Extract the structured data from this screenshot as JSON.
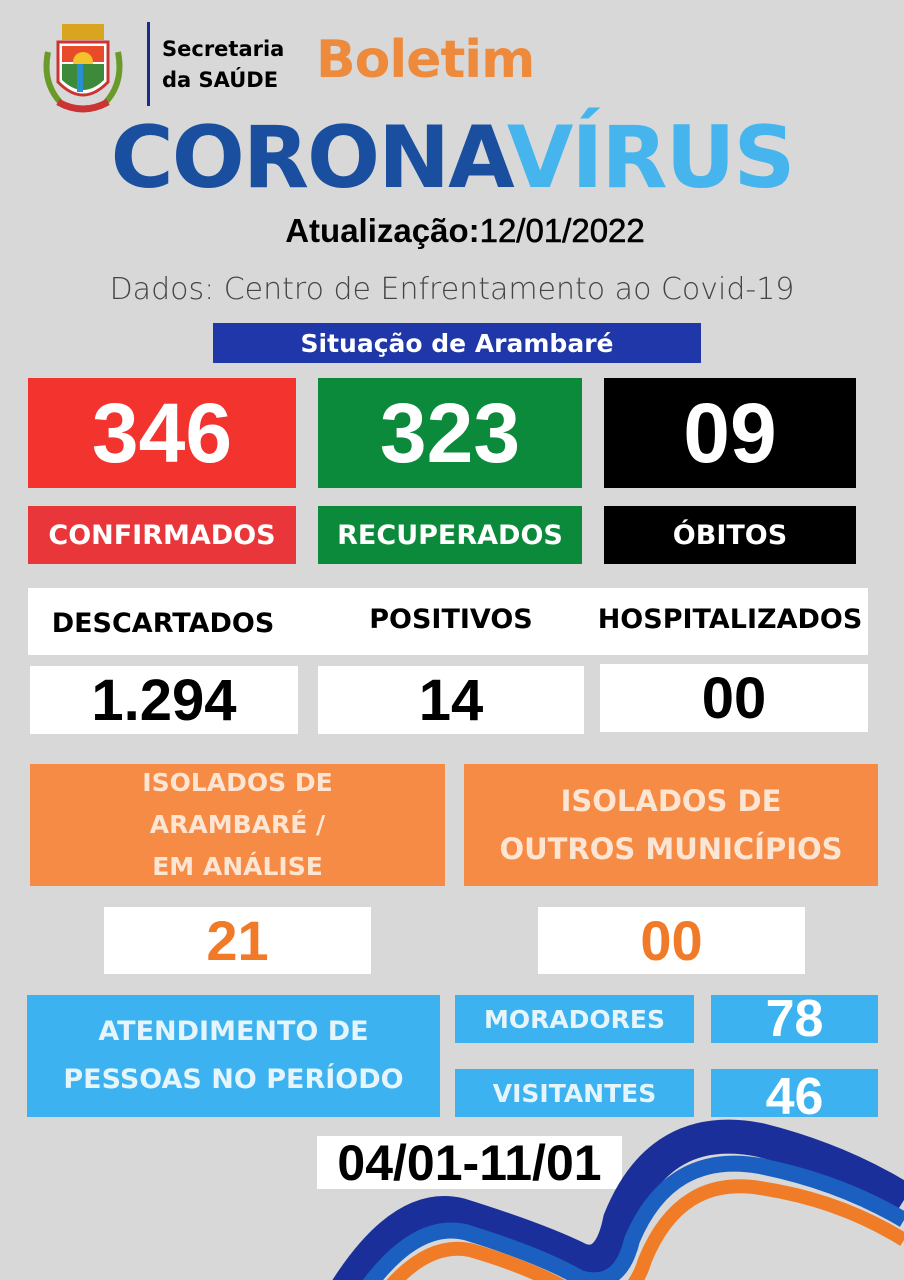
{
  "header": {
    "org_line1": "Secretaria",
    "org_line2": "da SAÚDE",
    "bulletin": "Boletim",
    "title_part1": "CORONA",
    "title_part2": "VÍRUS",
    "update_label": "Atualização:",
    "update_date": "12/01/2022",
    "source": "Dados:  Centro de Enfrentamento ao Covid-19",
    "section": "Situação de Arambaré"
  },
  "main_stats": [
    {
      "value": "346",
      "label": "CONFIRMADOS",
      "color": "#f2332e"
    },
    {
      "value": "323",
      "label": "RECUPERADOS",
      "color": "#0b8a3b"
    },
    {
      "value": "09",
      "label": "ÓBITOS",
      "color": "#000000"
    }
  ],
  "secondary_stats": [
    {
      "label": "DESCARTADOS",
      "value": "1.294"
    },
    {
      "label": "POSITIVOS",
      "value": "14"
    },
    {
      "label": "HOSPITALIZADOS",
      "value": "00"
    }
  ],
  "isolated": [
    {
      "label": "ISOLADOS DE ARAMBARÉ / EM ANÁLISE",
      "lines": [
        "ISOLADOS DE",
        "ARAMBARÉ /",
        "EM ANÁLISE"
      ],
      "value": "21"
    },
    {
      "label": "ISOLADOS DE OUTROS MUNICÍPIOS",
      "lines": [
        "ISOLADOS DE",
        "OUTROS MUNICÍPIOS"
      ],
      "value": "00"
    }
  ],
  "attendance": {
    "lines": [
      "ATENDIMENTO DE",
      "PESSOAS NO PERÍODO"
    ],
    "residents_label": "MORADORES",
    "residents_value": "78",
    "visitors_label": "VISITANTES",
    "visitors_value": "46",
    "period": "04/01-11/01"
  },
  "colors": {
    "orange": "#f68b45",
    "blue_panel": "#3cb2f0",
    "banner": "#1f37a8",
    "title_dark": "#1a4f9f",
    "title_light": "#46b5ee"
  }
}
